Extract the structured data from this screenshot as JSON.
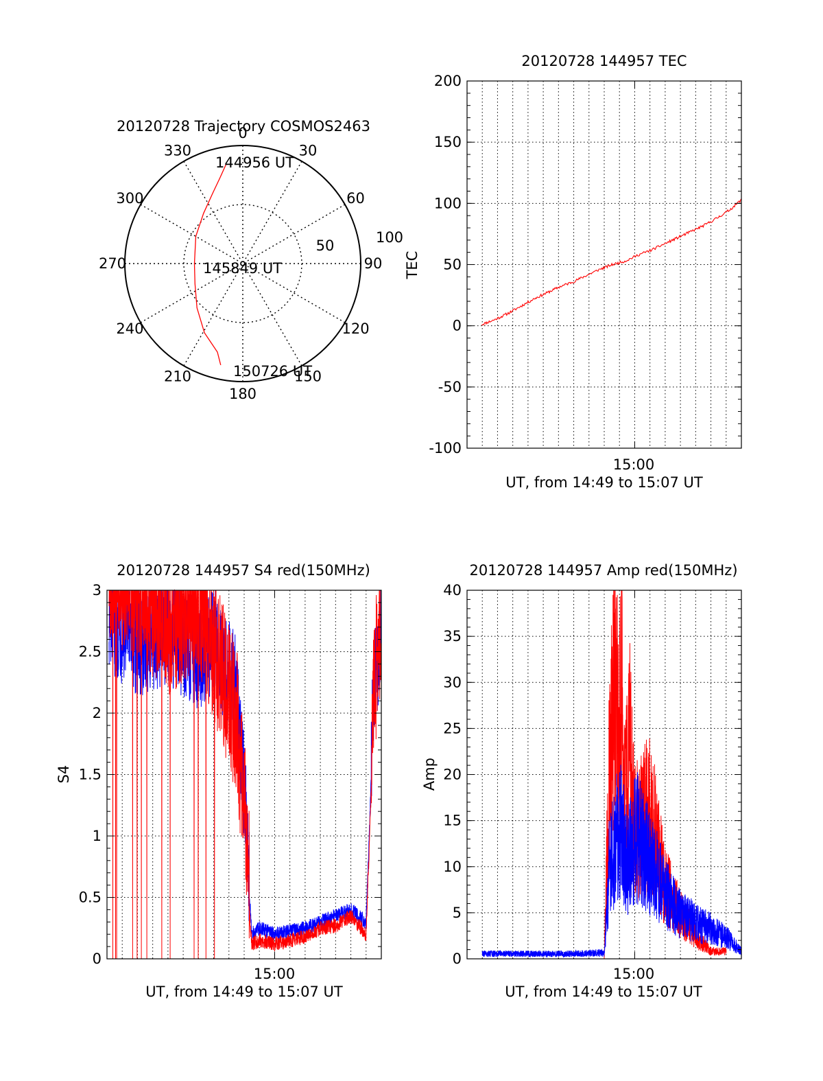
{
  "chart_data": [
    {
      "type": "polar",
      "title": "20120728 Trajectory COSMOS2463",
      "angle_labels": [
        "0",
        "30",
        "60",
        "90",
        "120",
        "150",
        "180",
        "210",
        "240",
        "270",
        "300",
        "330"
      ],
      "radius_labels": [
        "50",
        "100"
      ],
      "rlim": [
        0,
        100
      ],
      "grid": "dotted",
      "series": [
        {
          "color": "#ff0000",
          "points": [
            {
              "az": 350.3,
              "r": 85
            },
            {
              "az": 345,
              "r": 75
            },
            {
              "az": 337,
              "r": 65
            },
            {
              "az": 322,
              "r": 54
            },
            {
              "az": 300,
              "r": 46
            },
            {
              "az": 270,
              "r": 41
            },
            {
              "az": 247,
              "r": 44
            },
            {
              "az": 226,
              "r": 54
            },
            {
              "az": 209,
              "r": 67
            },
            {
              "az": 196,
              "r": 78
            },
            {
              "az": 192.3,
              "r": 88
            }
          ]
        }
      ],
      "annotations": [
        "144956 UT",
        "145849 UT",
        "150726 UT"
      ]
    },
    {
      "type": "line",
      "title": "20120728 144957 TEC",
      "xlabel": "UT, from 14:49 to 15:07 UT",
      "ylabel": "TEC",
      "xlim": [
        "14:49",
        "15:07"
      ],
      "ylim": [
        -100,
        200
      ],
      "xticks": [
        "15:00"
      ],
      "yticks": [
        "-100",
        "-50",
        "0",
        "50",
        "100",
        "150",
        "200"
      ],
      "grid": true,
      "series": [
        {
          "color": "#ff0000",
          "x": [
            "14:49:57",
            "14:50:49",
            "14:51:40",
            "14:52:32",
            "14:53:23",
            "14:54:15",
            "14:55:06",
            "14:55:58",
            "14:56:49",
            "14:57:41",
            "14:58:32",
            "14:59:24",
            "15:00:15",
            "15:01:07",
            "15:01:58",
            "15:02:50",
            "15:03:41",
            "15:04:33",
            "15:05:24",
            "15:06:16",
            "15:07:00"
          ],
          "values": [
            1,
            5,
            10,
            16,
            22,
            27,
            32,
            36,
            41,
            46,
            50,
            53,
            58,
            62,
            67,
            72,
            77,
            82,
            88,
            95,
            103
          ]
        }
      ]
    },
    {
      "type": "line",
      "title": "20120728 144957 S4 red(150MHz)",
      "xlabel": "UT, from 14:49 to 15:07 UT",
      "ylabel": "S4",
      "xlim": [
        "14:49",
        "15:07"
      ],
      "ylim": [
        0,
        3
      ],
      "xticks": [
        "15:00"
      ],
      "yticks": [
        "0",
        "0.5",
        "1",
        "1.5",
        "2",
        "2.5",
        "3"
      ],
      "grid": true,
      "series": [
        {
          "color": "#ff0000",
          "x": [
            "14:49:08",
            "14:51:00",
            "14:53:00",
            "14:55:00",
            "14:56:00",
            "14:57:30",
            "14:58:00",
            "14:58:30",
            "14:59:00",
            "15:00:00",
            "15:02:00",
            "15:03:00",
            "15:04:00",
            "15:05:00",
            "15:06:00",
            "15:06:30",
            "15:07:00"
          ],
          "values": [
            2.9,
            2.8,
            2.5,
            2.7,
            2.3,
            1.7,
            1.0,
            0.12,
            0.15,
            0.12,
            0.18,
            0.25,
            0.27,
            0.35,
            0.2,
            1.9,
            2.6
          ]
        },
        {
          "color": "#0000ff",
          "x": [
            "14:49:08",
            "14:51:00",
            "14:53:00",
            "14:55:00",
            "14:56:00",
            "14:57:30",
            "14:58:00",
            "14:58:30",
            "14:59:00",
            "15:00:00",
            "15:02:00",
            "15:03:00",
            "15:04:00",
            "15:05:00",
            "15:06:00",
            "15:06:30",
            "15:07:00"
          ],
          "values": [
            2.6,
            2.4,
            2.5,
            2.3,
            2.4,
            2.0,
            1.2,
            0.2,
            0.25,
            0.2,
            0.25,
            0.3,
            0.35,
            0.4,
            0.3,
            2.0,
            2.5
          ]
        }
      ]
    },
    {
      "type": "line",
      "title": "20120728 144957 Amp red(150MHz)",
      "xlabel": "UT, from 14:49 to 15:07 UT",
      "ylabel": "Amp",
      "xlim": [
        "14:49",
        "15:07"
      ],
      "ylim": [
        0,
        40
      ],
      "xticks": [
        "15:00"
      ],
      "yticks": [
        "0",
        "5",
        "10",
        "15",
        "20",
        "25",
        "30",
        "35",
        "40"
      ],
      "grid": true,
      "series": [
        {
          "color": "#ff0000",
          "x": [
            "14:58:00",
            "14:58:20",
            "14:58:40",
            "14:59:00",
            "14:59:10",
            "14:59:20",
            "14:59:40",
            "15:00:00",
            "15:00:30",
            "15:01:00",
            "15:02:00",
            "15:03:00",
            "15:04:00",
            "15:05:00",
            "15:06:00"
          ],
          "values": [
            0,
            25,
            36,
            30,
            38,
            20,
            28,
            17,
            18,
            20,
            10,
            6,
            3,
            1,
            1
          ]
        },
        {
          "color": "#0000ff",
          "x": [
            "14:50:00",
            "14:52:00",
            "14:54:00",
            "14:56:00",
            "14:58:00",
            "14:58:20",
            "14:58:40",
            "14:59:00",
            "14:59:30",
            "15:00:00",
            "15:01:00",
            "15:02:00",
            "15:03:00",
            "15:04:00",
            "15:05:00",
            "15:06:00",
            "15:07:00"
          ],
          "values": [
            0.5,
            0.5,
            0.5,
            0.5,
            0.6,
            12,
            15,
            18,
            13,
            17,
            13,
            9,
            6,
            5,
            4,
            3,
            1
          ]
        }
      ]
    }
  ]
}
